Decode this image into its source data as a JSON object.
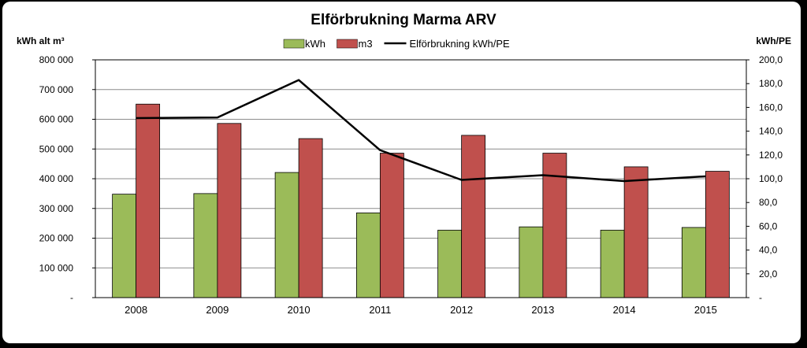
{
  "chart_data": {
    "type": "bar",
    "title": "Elförbrukning Marma ARV",
    "ylabel_left": "kWh alt m³",
    "ylabel_right": "kWh/PE",
    "categories": [
      "2008",
      "2009",
      "2010",
      "2011",
      "2012",
      "2013",
      "2014",
      "2015"
    ],
    "series": [
      {
        "name": "kWh",
        "kind": "bar",
        "axis": "left",
        "color": "#9BBB59",
        "values": [
          348000,
          350000,
          421000,
          285000,
          227000,
          238000,
          227000,
          236000
        ]
      },
      {
        "name": "m3",
        "kind": "bar",
        "axis": "left",
        "color": "#C0504D",
        "values": [
          651000,
          586000,
          535000,
          486000,
          546000,
          486000,
          440000,
          425000
        ]
      },
      {
        "name": "Elförbrukning kWh/PE",
        "kind": "line",
        "axis": "right",
        "color": "#000000",
        "values": [
          151,
          151.5,
          183,
          124,
          99,
          103,
          98,
          102
        ]
      }
    ],
    "ylim_left": [
      0,
      800000
    ],
    "ylim_right": [
      0,
      200
    ],
    "yticks_left": [
      "-",
      "100 000",
      "200 000",
      "300 000",
      "400 000",
      "500 000",
      "600 000",
      "700 000",
      "800 000"
    ],
    "yticks_right": [
      "-",
      "20,0",
      "40,0",
      "60,0",
      "80,0",
      "100,0",
      "120,0",
      "140,0",
      "160,0",
      "180,0",
      "200,0"
    ],
    "legend_position": "top-center",
    "grid": "horizontal"
  }
}
